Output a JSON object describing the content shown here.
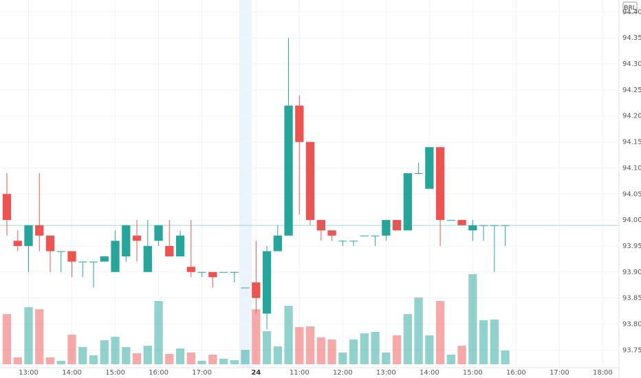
{
  "chart_data": {
    "type": "candlestick",
    "currency": "BRL",
    "up_color": "#26a69a",
    "down_color": "#ef5350",
    "ylim": [
      93.716,
      94.423
    ],
    "yticks": [
      93.75,
      {
        "value": 93.8,
        "label": "93.80"
      },
      93.85,
      {
        "value": 93.9,
        "label": "93.90"
      },
      93.95,
      {
        "value": 94.0,
        "label": "94.00"
      },
      94.05,
      {
        "value": 94.1,
        "label": "94.10"
      },
      94.15,
      {
        "value": 94.2,
        "label": "94.20"
      },
      94.25,
      {
        "value": 94.3,
        "label": "94.30"
      },
      94.35,
      {
        "value": 94.4,
        "label": "94.40"
      }
    ],
    "xlim": [
      -0.635,
      56.5
    ],
    "xticks": [
      {
        "value": 2,
        "label": "13:00"
      },
      {
        "value": 6,
        "label": "14:00"
      },
      {
        "value": 10,
        "label": "15:00"
      },
      {
        "value": 14,
        "label": "16:00"
      },
      {
        "value": 18,
        "label": "17:00"
      },
      {
        "value": 23,
        "label": "24"
      },
      {
        "value": 27,
        "label": "11:00"
      },
      {
        "value": 31,
        "label": "12:00"
      },
      {
        "value": 35,
        "label": "13:00"
      },
      {
        "value": 39,
        "label": "14:00"
      },
      {
        "value": 43,
        "label": "15:00"
      },
      {
        "value": 47,
        "label": "16:00"
      },
      {
        "value": 51,
        "label": "17:00"
      },
      {
        "value": 55,
        "label": "18:00"
      }
    ],
    "grid": true,
    "open": [
      94.05,
      93.96,
      93.95,
      93.99,
      93.97,
      93.94,
      93.94,
      93.92,
      93.92,
      93.92,
      93.9,
      93.93,
      93.97,
      93.9,
      93.96,
      93.95,
      93.93,
      93.91,
      93.9,
      93.9,
      93.9,
      93.9,
      93.87,
      93.88,
      93.82,
      93.94,
      93.97,
      94.22,
      94.15,
      94.0,
      93.98,
      93.96,
      93.96,
      93.97,
      93.97,
      93.97,
      94.0,
      93.98,
      94.09,
      94.06,
      94.14,
      94.0,
      94.0,
      93.98,
      93.99,
      93.99,
      93.99
    ],
    "high": [
      94.09,
      93.98,
      93.99,
      94.09,
      93.97,
      93.94,
      93.94,
      93.92,
      93.92,
      93.93,
      93.98,
      93.99,
      94.0,
      94.0,
      93.99,
      94.0,
      93.98,
      94.0,
      93.9,
      93.9,
      93.9,
      93.9,
      93.87,
      93.96,
      93.95,
      93.99,
      94.35,
      94.24,
      94.15,
      94.0,
      93.98,
      93.96,
      93.96,
      93.97,
      93.97,
      94.0,
      94.0,
      94.09,
      94.11,
      94.14,
      94.14,
      94.0,
      94.0,
      94.0,
      93.99,
      93.99,
      93.99
    ],
    "low": [
      93.97,
      93.94,
      93.9,
      93.94,
      93.9,
      93.9,
      93.89,
      93.89,
      93.87,
      93.92,
      93.9,
      93.92,
      93.92,
      93.9,
      93.95,
      93.93,
      93.93,
      93.89,
      93.89,
      93.87,
      93.9,
      93.88,
      93.87,
      93.82,
      93.79,
      93.94,
      93.97,
      94.01,
      93.99,
      93.96,
      93.96,
      93.95,
      93.95,
      93.97,
      93.95,
      93.96,
      93.98,
      93.98,
      94.09,
      94.06,
      93.95,
      94.0,
      93.99,
      93.96,
      93.96,
      93.9,
      93.95
    ],
    "close": [
      94.0,
      93.95,
      93.99,
      93.97,
      93.94,
      93.94,
      93.92,
      93.92,
      93.92,
      93.93,
      93.96,
      93.99,
      93.96,
      93.95,
      93.99,
      93.93,
      93.97,
      93.9,
      93.9,
      93.89,
      93.9,
      93.9,
      93.87,
      93.85,
      93.94,
      93.97,
      94.22,
      94.15,
      94.0,
      93.98,
      93.97,
      93.96,
      93.96,
      93.97,
      93.97,
      94.0,
      93.98,
      94.09,
      94.09,
      94.14,
      94.0,
      94.0,
      93.99,
      93.99,
      93.99,
      93.99,
      93.99
    ],
    "volume": [
      73,
      10,
      83,
      80,
      10,
      5,
      43,
      25,
      13,
      35,
      40,
      25,
      16,
      27,
      92,
      15,
      23,
      17,
      5,
      14,
      8,
      6,
      21,
      80,
      48,
      26,
      85,
      54,
      55,
      39,
      36,
      17,
      36,
      45,
      47,
      17,
      42,
      73,
      97,
      42,
      92,
      14,
      27,
      131,
      64,
      65,
      20
    ]
  }
}
